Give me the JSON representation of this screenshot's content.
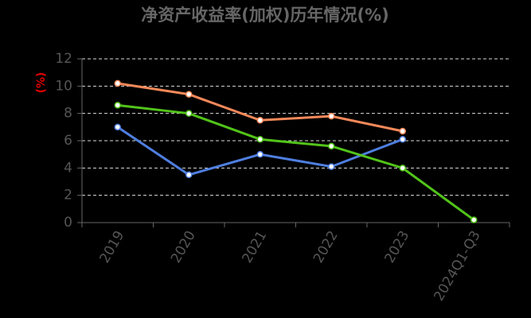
{
  "chart_data": {
    "type": "line",
    "title": "净资产收益率(加权)历年情况(%)",
    "y_label": "(%)",
    "categories": [
      "2019",
      "2020",
      "2021",
      "2022",
      "2023",
      "2024Q1-Q3"
    ],
    "series": [
      {
        "color": "#f5895a",
        "values": [
          10.2,
          9.4,
          7.5,
          7.8,
          6.7,
          null
        ]
      },
      {
        "color": "#4f7fe0",
        "values": [
          7.0,
          3.5,
          5.0,
          4.1,
          6.1,
          null
        ]
      },
      {
        "color": "#52c41a",
        "values": [
          8.6,
          8.0,
          6.1,
          5.6,
          4.0,
          0.2
        ]
      }
    ],
    "ylim": [
      0,
      12
    ],
    "yticks": [
      0,
      2,
      4,
      6,
      8,
      10,
      12
    ],
    "grid": true
  }
}
